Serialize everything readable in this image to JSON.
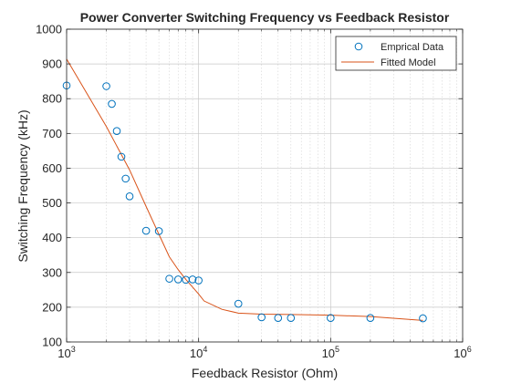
{
  "chart_data": {
    "type": "scatter",
    "title": "Power Converter Switching Frequency vs Feedback Resistor",
    "xlabel": "Feedback Resistor (Ohm)",
    "ylabel": "Switching Frequency (kHz)",
    "xscale": "log",
    "xlim": [
      1000,
      1000000
    ],
    "ylim": [
      100,
      1000
    ],
    "grid": true,
    "legend_position": "top-right",
    "x_ticks": [
      {
        "value": 1000,
        "base": "10",
        "exp": "3"
      },
      {
        "value": 10000,
        "base": "10",
        "exp": "4"
      },
      {
        "value": 100000,
        "base": "10",
        "exp": "5"
      },
      {
        "value": 1000000,
        "base": "10",
        "exp": "6"
      }
    ],
    "y_ticks": [
      "100",
      "200",
      "300",
      "400",
      "500",
      "600",
      "700",
      "800",
      "900",
      "1000"
    ],
    "series": [
      {
        "name": "Emprical Data",
        "style": "markers",
        "color": "#0072BD",
        "x": [
          1000,
          2000,
          2200,
          2400,
          2600,
          2800,
          3000,
          4000,
          5000,
          6000,
          7000,
          8000,
          9000,
          10000,
          20000,
          30000,
          40000,
          50000,
          100000,
          200000,
          500000
        ],
        "y": [
          838,
          836,
          785,
          707,
          633,
          570,
          519,
          420,
          419,
          282,
          280,
          279,
          280,
          277,
          210,
          171,
          169,
          169,
          169,
          169,
          168
        ]
      },
      {
        "name": "Fitted Model",
        "style": "line",
        "color": "#D95319",
        "x": [
          1000,
          2000,
          3000,
          4000,
          5000,
          6000,
          7000,
          8000,
          9000,
          10000,
          11000,
          15000,
          20000,
          30000,
          50000,
          100000,
          200000,
          500000
        ],
        "y": [
          914,
          720,
          595,
          490,
          410,
          345,
          308,
          280,
          258,
          238,
          218,
          194,
          183,
          180,
          179,
          177,
          173,
          162
        ]
      }
    ]
  }
}
